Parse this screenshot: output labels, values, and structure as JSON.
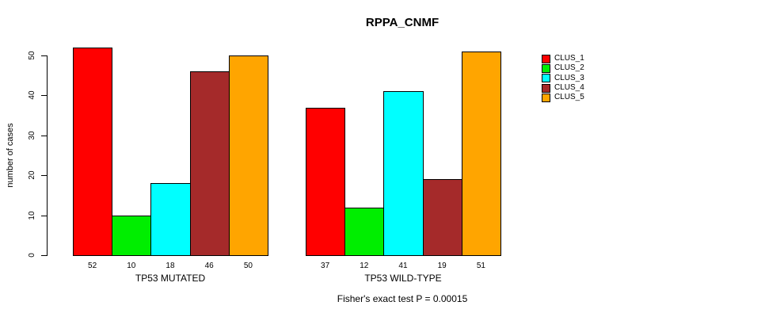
{
  "chart_data": {
    "type": "bar",
    "title": "RPPA_CNMF",
    "subtitle": "Fisher's exact test P = 0.00015",
    "ylabel": "number of cases",
    "xlabel": "",
    "ylim": [
      0,
      50
    ],
    "yticks": [
      0,
      10,
      20,
      30,
      40,
      50
    ],
    "grid": false,
    "legend_position": "right",
    "bar_border_color": "#000000",
    "categories": [
      "TP53 MUTATED",
      "TP53 WILD-TYPE"
    ],
    "series": [
      {
        "name": "CLUS_1",
        "color": "#FF0000",
        "values": [
          52,
          37
        ]
      },
      {
        "name": "CLUS_2",
        "color": "#00EE00",
        "values": [
          10,
          12
        ]
      },
      {
        "name": "CLUS_3",
        "color": "#00FFFF",
        "values": [
          18,
          41
        ]
      },
      {
        "name": "CLUS_4",
        "color": "#A52A2A",
        "values": [
          46,
          19
        ]
      },
      {
        "name": "CLUS_5",
        "color": "#FFA500",
        "values": [
          50,
          51
        ]
      }
    ]
  }
}
